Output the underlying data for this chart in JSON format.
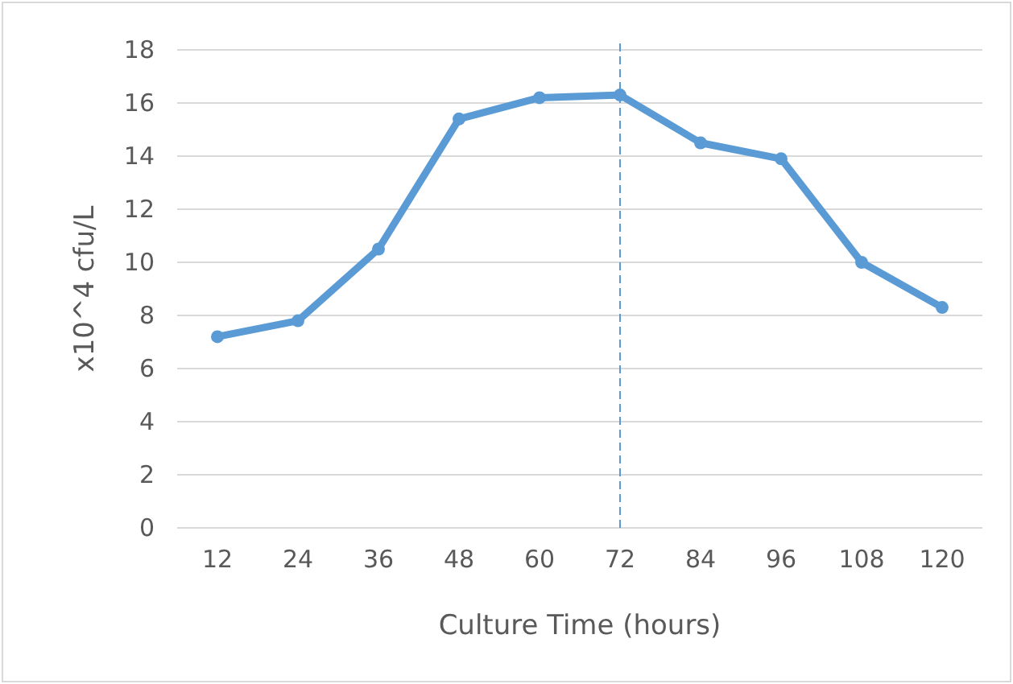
{
  "chart_data": {
    "type": "line",
    "xlabel": "Culture Time (hours)",
    "ylabel": "x10^4 cfu/L",
    "categories": [
      "12",
      "24",
      "36",
      "48",
      "60",
      "72",
      "84",
      "96",
      "108",
      "120"
    ],
    "series": [
      {
        "color": "#5b9bd5",
        "values": [
          7.2,
          7.8,
          10.5,
          15.4,
          16.2,
          16.3,
          14.5,
          13.9,
          10.0,
          8.3
        ]
      }
    ],
    "ylim": [
      0,
      18
    ],
    "yticks": [
      0,
      2,
      4,
      6,
      8,
      10,
      12,
      14,
      16,
      18
    ],
    "grid": "y",
    "marker": "circle",
    "line_style": "solid",
    "ref_lines": [
      {
        "axis": "x",
        "value": "72",
        "color": "#5b9bd5",
        "line_style": "dashed"
      }
    ]
  }
}
